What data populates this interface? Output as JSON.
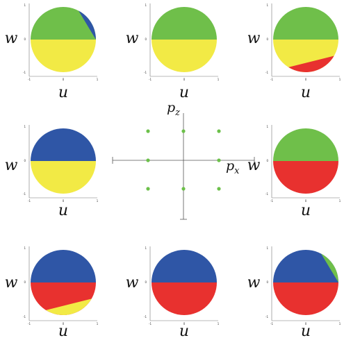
{
  "colors": {
    "green": "#6fbf4a",
    "blue": "#2f56a6",
    "yellow": "#f2ea45",
    "red": "#e8312f",
    "dot": "#6cc04a",
    "axis": "#555555"
  },
  "axis_labels": {
    "horizontal": "u",
    "vertical": "w"
  },
  "tick_labels": {
    "neg": "-1",
    "zero": "0",
    "pos": "1"
  },
  "center": {
    "pz_label": "p",
    "pz_sub": "z",
    "px_label": "p",
    "px_sub": "x"
  },
  "panels": [
    {
      "top_half": "green",
      "bottom_half": "yellow",
      "wedge": {
        "color": "blue",
        "region": "upper-right"
      }
    },
    {
      "top_half": "green",
      "bottom_half": "yellow",
      "wedge": null
    },
    {
      "top_half": "green",
      "bottom_half": "yellow",
      "wedge": {
        "color": "red",
        "region": "lower-right"
      }
    },
    {
      "top_half": "blue",
      "bottom_half": "yellow",
      "wedge": null
    },
    {
      "top_half": "green",
      "bottom_half": "red",
      "wedge": null
    },
    {
      "top_half": "blue",
      "bottom_half": "red",
      "wedge": {
        "color": "yellow",
        "region": "lower-right"
      }
    },
    {
      "top_half": "blue",
      "bottom_half": "red",
      "wedge": null
    },
    {
      "top_half": "blue",
      "bottom_half": "red",
      "wedge": {
        "color": "green",
        "region": "upper-right"
      }
    }
  ]
}
